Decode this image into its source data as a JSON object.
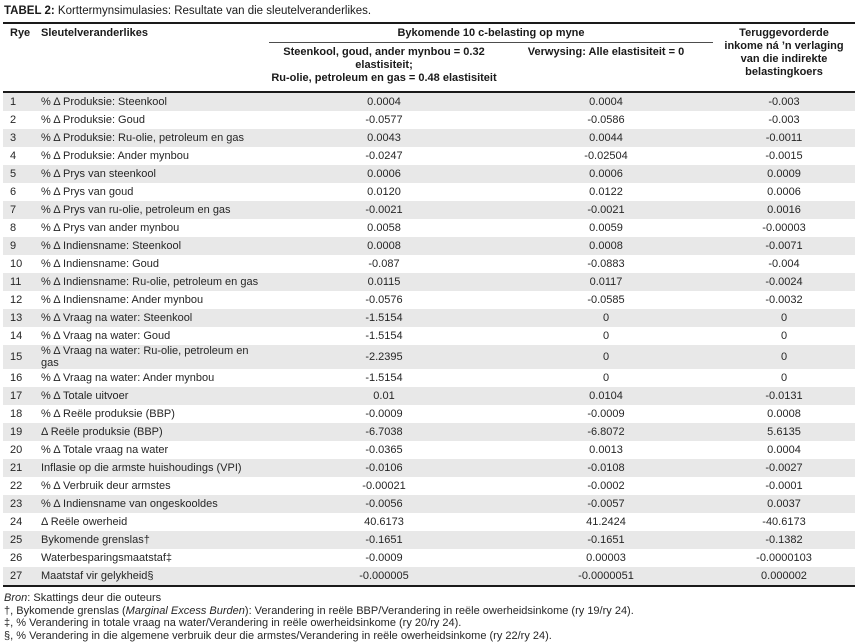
{
  "title": {
    "label": "TABEL 2:",
    "text": "Korttermynsimulasies: Resultate van die sleutelveranderlikes."
  },
  "colors": {
    "row_band": "#e8e8e8",
    "border": "#1a1a1a",
    "thin_rule": "#4d4d4d",
    "text": "#262626"
  },
  "table": {
    "columns": {
      "rye": "Rye",
      "variables": "Sleutelveranderlikes",
      "group": "Bykomende 10 c-belasting op myne",
      "scenario1": "Steenkool, goud, ander mynbou = 0.32\nelastisiteit;\nRu-olie, petroleum en gas = 0.48 elastisiteit",
      "scenario2": "Verwysing: Alle elastisiteit = 0",
      "recovered": "Teruggevorderde\ninkome ná ’n verlaging\nvan die indirekte\nbelastingkoers"
    },
    "rows": [
      {
        "rye": "1",
        "label": "% Δ Produksie: Steenkool",
        "scenario": "0.0004",
        "reference": "0.0004",
        "recovered": "-0.003"
      },
      {
        "rye": "2",
        "label": "% Δ Produksie: Goud",
        "scenario": "-0.0577",
        "reference": "-0.0586",
        "recovered": "-0.003"
      },
      {
        "rye": "3",
        "label": "% Δ Produksie: Ru-olie, petroleum en gas",
        "scenario": "0.0043",
        "reference": "0.0044",
        "recovered": "-0.0011"
      },
      {
        "rye": "4",
        "label": "% Δ Produksie: Ander mynbou",
        "scenario": "-0.0247",
        "reference": "-0.02504",
        "recovered": "-0.0015"
      },
      {
        "rye": "5",
        "label": "% Δ Prys van steenkool",
        "scenario": "0.0006",
        "reference": "0.0006",
        "recovered": "0.0009"
      },
      {
        "rye": "6",
        "label": "% Δ Prys van goud",
        "scenario": "0.0120",
        "reference": "0.0122",
        "recovered": "0.0006"
      },
      {
        "rye": "7",
        "label": "% Δ Prys van ru-olie, petroleum en gas",
        "scenario": "-0.0021",
        "reference": "-0.0021",
        "recovered": "0.0016"
      },
      {
        "rye": "8",
        "label": "% Δ Prys van ander mynbou",
        "scenario": "0.0058",
        "reference": "0.0059",
        "recovered": "-0.00003"
      },
      {
        "rye": "9",
        "label": "% Δ Indiensname: Steenkool",
        "scenario": "0.0008",
        "reference": "0.0008",
        "recovered": "-0.0071"
      },
      {
        "rye": "10",
        "label": "% Δ Indiensname: Goud",
        "scenario": "-0.087",
        "reference": "-0.0883",
        "recovered": "-0.004"
      },
      {
        "rye": "11",
        "label": "% Δ Indiensname: Ru-olie, petroleum en gas",
        "scenario": "0.0115",
        "reference": "0.0117",
        "recovered": "-0.0024"
      },
      {
        "rye": "12",
        "label": "% Δ Indiensname: Ander mynbou",
        "scenario": "-0.0576",
        "reference": "-0.0585",
        "recovered": "-0.0032"
      },
      {
        "rye": "13",
        "label": "% Δ Vraag na water: Steenkool",
        "scenario": "-1.5154",
        "reference": "0",
        "recovered": "0"
      },
      {
        "rye": "14",
        "label": "% Δ Vraag na water: Goud",
        "scenario": "-1.5154",
        "reference": "0",
        "recovered": "0"
      },
      {
        "rye": "15",
        "label": "% Δ Vraag na water: Ru-olie, petroleum en gas",
        "scenario": "-2.2395",
        "reference": "0",
        "recovered": "0"
      },
      {
        "rye": "16",
        "label": "% Δ Vraag na water: Ander mynbou",
        "scenario": "-1.5154",
        "reference": "0",
        "recovered": "0"
      },
      {
        "rye": "17",
        "label": "% Δ Totale uitvoer",
        "scenario": "0.01",
        "reference": "0.0104",
        "recovered": "-0.0131"
      },
      {
        "rye": "18",
        "label": "% Δ Reële produksie (BBP)",
        "scenario": "-0.0009",
        "reference": "-0.0009",
        "recovered": "0.0008"
      },
      {
        "rye": "19",
        "label": "Δ Reële produksie (BBP)",
        "scenario": "-6.7038",
        "reference": "-6.8072",
        "recovered": "5.6135"
      },
      {
        "rye": "20",
        "label": "% Δ Totale vraag na water",
        "scenario": "-0.0365",
        "reference": "0.0013",
        "recovered": "0.0004"
      },
      {
        "rye": "21",
        "label": "Inflasie op die armste huishoudings (VPI)",
        "scenario": "-0.0106",
        "reference": "-0.0108",
        "recovered": "-0.0027"
      },
      {
        "rye": "22",
        "label": "% Δ Verbruik deur armstes",
        "scenario": "-0.00021",
        "reference": "-0.0002",
        "recovered": "-0.0001"
      },
      {
        "rye": "23",
        "label": "% Δ Indiensname van ongeskooldes",
        "scenario": "-0.0056",
        "reference": "-0.0057",
        "recovered": "0.0037"
      },
      {
        "rye": "24",
        "label": "Δ Reële owerheid",
        "scenario": "40.6173",
        "reference": "41.2424",
        "recovered": "-40.6173"
      },
      {
        "rye": "25",
        "label": "Bykomende grenslas†",
        "scenario": "-0.1651",
        "reference": "-0.1651",
        "recovered": "-0.1382"
      },
      {
        "rye": "26",
        "label": "Waterbesparingsmaatstaf‡",
        "scenario": "-0.0009",
        "reference": "0.00003",
        "recovered": "-0.0000103"
      },
      {
        "rye": "27",
        "label": "Maatstaf vir gelykheid§",
        "scenario": "-0.000005",
        "reference": "-0.0000051",
        "recovered": "0.000002"
      }
    ]
  },
  "footnotes": [
    [
      {
        "text": "Bron",
        "italic": true
      },
      {
        "text": ": Skattings deur die outeurs",
        "italic": false
      }
    ],
    [
      {
        "text": "†, Bykomende grenslas (",
        "italic": false
      },
      {
        "text": "Marginal Excess Burden",
        "italic": true
      },
      {
        "text": "): Verandering in reële BBP/Verandering in reële owerheidsinkome (ry 19/ry 24).",
        "italic": false
      }
    ],
    [
      {
        "text": "‡, % Verandering in totale vraag na water/Verandering in reële owerheidsinkome (ry 20/ry 24).",
        "italic": false
      }
    ],
    [
      {
        "text": "§, % Verandering in die algemene verbruik deur die armstes/Verandering in reële owerheidsinkome (ry 22/ry 24).",
        "italic": false
      }
    ]
  ]
}
